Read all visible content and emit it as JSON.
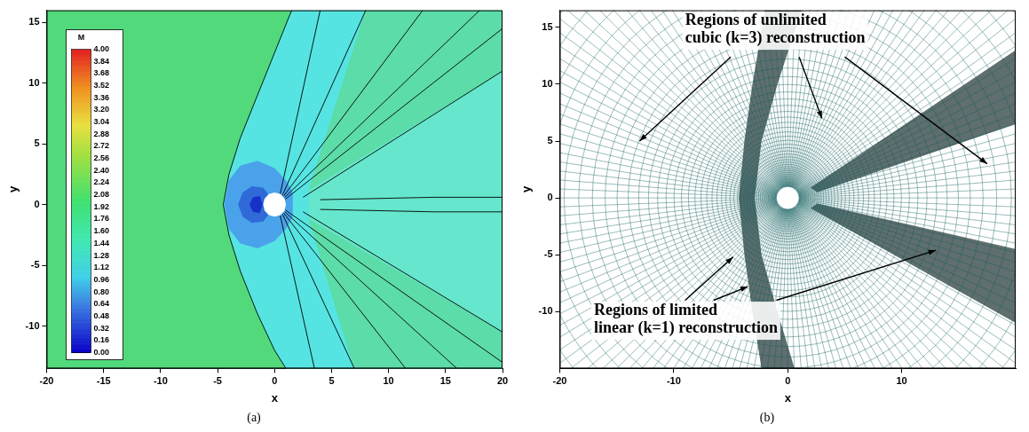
{
  "chart_data": [
    {
      "type": "contour",
      "title": "(a)",
      "x_label": "x",
      "y_label": "y",
      "xlim": [
        -20,
        20
      ],
      "xticks": [
        -20,
        -15,
        -10,
        -5,
        0,
        5,
        10,
        15,
        20
      ],
      "ylim": [
        -13.5,
        16
      ],
      "yticks": [
        -10,
        -5,
        0,
        5,
        10,
        15
      ],
      "grid": false,
      "colorbar": {
        "title": "M",
        "range": [
          0,
          4
        ],
        "ticks": [
          {
            "value": 0,
            "label": "0.00"
          },
          {
            "value": 0.16,
            "label": "0.16"
          },
          {
            "value": 0.32,
            "label": "0.32"
          },
          {
            "value": 0.48,
            "label": "0.48"
          },
          {
            "value": 0.64,
            "label": "0.64"
          },
          {
            "value": 0.8,
            "label": "0.80"
          },
          {
            "value": 0.96,
            "label": "0.96"
          },
          {
            "value": 1.12,
            "label": "1.12"
          },
          {
            "value": 1.28,
            "label": "1.28"
          },
          {
            "value": 1.44,
            "label": "1.44"
          },
          {
            "value": 1.6,
            "label": "1.60"
          },
          {
            "value": 1.76,
            "label": "1.76"
          },
          {
            "value": 1.92,
            "label": "1.92"
          },
          {
            "value": 2.08,
            "label": "2.08"
          },
          {
            "value": 2.24,
            "label": "2.24"
          },
          {
            "value": 2.4,
            "label": "2.40"
          },
          {
            "value": 2.56,
            "label": "2.56"
          },
          {
            "value": 2.72,
            "label": "2.72"
          },
          {
            "value": 2.88,
            "label": "2.88"
          },
          {
            "value": 3.04,
            "label": "3.04"
          },
          {
            "value": 3.2,
            "label": "3.20"
          },
          {
            "value": 3.36,
            "label": "3.36"
          },
          {
            "value": 3.52,
            "label": "3.52"
          },
          {
            "value": 3.68,
            "label": "3.68"
          },
          {
            "value": 3.84,
            "label": "3.84"
          },
          {
            "value": 4,
            "label": "4.00"
          }
        ]
      },
      "series": [
        {
          "type": "area",
          "color": "#52d97c",
          "x": [
            -20,
            20,
            20,
            -20
          ],
          "y": [
            -13.5,
            -13.5,
            16,
            16
          ]
        },
        {
          "type": "area",
          "color": "#56e4e2",
          "x": [
            1.5,
            0,
            -1.5,
            -3,
            -4,
            -4.5,
            -4,
            -3,
            -1.5,
            0,
            1,
            7,
            3,
            3,
            8
          ],
          "y": [
            16,
            12.5,
            9,
            5.5,
            2.5,
            0,
            -2.5,
            -5.5,
            -9,
            -12,
            -13.5,
            -13.5,
            -1.2,
            1.2,
            16
          ]
        },
        {
          "type": "area",
          "color": "#5cdca8",
          "x": [
            8,
            3,
            20,
            20
          ],
          "y": [
            16,
            1.2,
            11,
            16
          ]
        },
        {
          "type": "area",
          "color": "#5cdca8",
          "x": [
            7,
            3,
            20,
            20
          ],
          "y": [
            -13.5,
            -1.2,
            -10.5,
            -13.5
          ]
        },
        {
          "type": "area",
          "color": "#66e6cc",
          "x": [
            3,
            20,
            20,
            3
          ],
          "y": [
            1.2,
            11,
            -10.5,
            -1.2
          ]
        },
        {
          "type": "area",
          "color": "#4aa2ea",
          "x": [
            -4.4,
            -4,
            -3,
            -1.5,
            0,
            1,
            1.6,
            1.6,
            1,
            0,
            -1.5,
            -3,
            -4
          ],
          "y": [
            0,
            2,
            3.2,
            3.6,
            3,
            2,
            1,
            -1,
            -2,
            -3,
            -3.6,
            -3.2,
            -2
          ]
        },
        {
          "type": "area",
          "color": "#2f6ad8",
          "x": [
            -3.2,
            -2.8,
            -2,
            -1,
            -0.5,
            -0.5,
            -1,
            -2,
            -2.8
          ],
          "y": [
            0,
            1,
            1.5,
            1.4,
            0.8,
            -0.8,
            -1.4,
            -1.5,
            -1
          ]
        },
        {
          "type": "area",
          "color": "#1630c8",
          "x": [
            -2.2,
            -1.9,
            -1.3,
            -1.05,
            -1.3,
            -1.9
          ],
          "y": [
            0,
            0.6,
            0.7,
            0,
            -0.7,
            -0.6
          ]
        },
        {
          "type": "area",
          "color": "#ffffff",
          "x": [
            1,
            0.87,
            0.5,
            0,
            -0.5,
            -0.87,
            -1,
            -0.87,
            -0.5,
            0,
            0.5,
            0.87
          ],
          "y": [
            0,
            0.5,
            0.87,
            1,
            0.87,
            0.5,
            0,
            -0.5,
            -0.87,
            -1,
            -0.87,
            -0.5
          ]
        },
        {
          "type": "line",
          "color": "#000000",
          "x": [
            1.5,
            0,
            -1.5,
            -3,
            -4,
            -4.5,
            -4,
            -3,
            -1.5,
            0,
            1
          ],
          "y": [
            16,
            12.5,
            9,
            5.5,
            2.5,
            0,
            -2.5,
            -5.5,
            -9,
            -12,
            -13.5
          ]
        },
        {
          "type": "line",
          "color": "#000000",
          "x": [
            2.5,
            20
          ],
          "y": [
            0.6,
            11
          ]
        },
        {
          "type": "line",
          "color": "#000000",
          "x": [
            2.5,
            20
          ],
          "y": [
            -0.6,
            -10.5
          ]
        },
        {
          "type": "line",
          "color": "#000000",
          "x": [
            0.5,
            4
          ],
          "y": [
            0.9,
            16
          ]
        },
        {
          "type": "line",
          "color": "#000000",
          "x": [
            0.7,
            8
          ],
          "y": [
            0.8,
            16
          ]
        },
        {
          "type": "line",
          "color": "#000000",
          "x": [
            0.8,
            13
          ],
          "y": [
            0.7,
            16
          ]
        },
        {
          "type": "line",
          "color": "#000000",
          "x": [
            0.9,
            18
          ],
          "y": [
            0.6,
            16
          ]
        },
        {
          "type": "line",
          "color": "#000000",
          "x": [
            0.95,
            20
          ],
          "y": [
            0.45,
            14.5
          ]
        },
        {
          "type": "line",
          "color": "#000000",
          "x": [
            0.5,
            3.5
          ],
          "y": [
            -0.9,
            -13.5
          ]
        },
        {
          "type": "line",
          "color": "#000000",
          "x": [
            0.7,
            7
          ],
          "y": [
            -0.8,
            -13.5
          ]
        },
        {
          "type": "line",
          "color": "#000000",
          "x": [
            0.8,
            11.5
          ],
          "y": [
            -0.7,
            -13.5
          ]
        },
        {
          "type": "line",
          "color": "#000000",
          "x": [
            0.9,
            16
          ],
          "y": [
            -0.6,
            -13.5
          ]
        },
        {
          "type": "line",
          "color": "#000000",
          "x": [
            0.95,
            20
          ],
          "y": [
            -0.45,
            -13
          ]
        },
        {
          "type": "line",
          "color": "#000000",
          "x": [
            4,
            14,
            20
          ],
          "y": [
            0.4,
            0.6,
            0.6
          ]
        },
        {
          "type": "line",
          "color": "#000000",
          "x": [
            4,
            14,
            20
          ],
          "y": [
            -0.4,
            -0.6,
            -0.6
          ]
        }
      ]
    },
    {
      "type": "mesh",
      "title": "(b)",
      "x_label": "x",
      "y_label": "y",
      "xlim": [
        -20,
        20
      ],
      "xticks": [
        -20,
        -10,
        0,
        10
      ],
      "ylim": [
        -15,
        16.5
      ],
      "yticks": [
        -10,
        -5,
        0,
        5,
        10,
        15
      ],
      "grid": false,
      "annotations": [
        {
          "lines": [
            "Regions of unlimited",
            "cubic (k=3) reconstruction"
          ]
        },
        {
          "lines": [
            "Regions of limited",
            "linear (k=1) reconstruction"
          ]
        }
      ],
      "series": [
        {
          "type": "area",
          "color": "#5f6e6e",
          "x": [
            -2,
            -3.1,
            -3.8,
            -4.3,
            -3.8,
            -3.1,
            -2.3,
            0.6,
            -0.9,
            -2.3,
            -2.9,
            -2.3,
            -0.9,
            1.2
          ],
          "y": [
            16.5,
            10,
            5,
            0,
            -5,
            -10,
            -15,
            -15,
            -10,
            -5,
            0,
            5,
            10,
            16.5
          ]
        },
        {
          "type": "area",
          "color": "#5f6e6e",
          "x": [
            2,
            20,
            20,
            2.6
          ],
          "y": [
            0.9,
            13,
            6.5,
            0.5
          ]
        },
        {
          "type": "area",
          "color": "#5f6e6e",
          "x": [
            2,
            20,
            20,
            2.6
          ],
          "y": [
            -0.9,
            -11,
            -4.5,
            -0.5
          ]
        },
        {
          "type": "area",
          "color": "#ffffff",
          "x": [
            1,
            0.87,
            0.5,
            0,
            -0.5,
            -0.87,
            -1,
            -0.87,
            -0.5,
            0,
            0.5,
            0.87
          ],
          "y": [
            0,
            0.5,
            0.87,
            1,
            0.87,
            0.5,
            0,
            -0.5,
            -0.87,
            -1,
            -0.87,
            -0.5
          ]
        }
      ]
    }
  ]
}
